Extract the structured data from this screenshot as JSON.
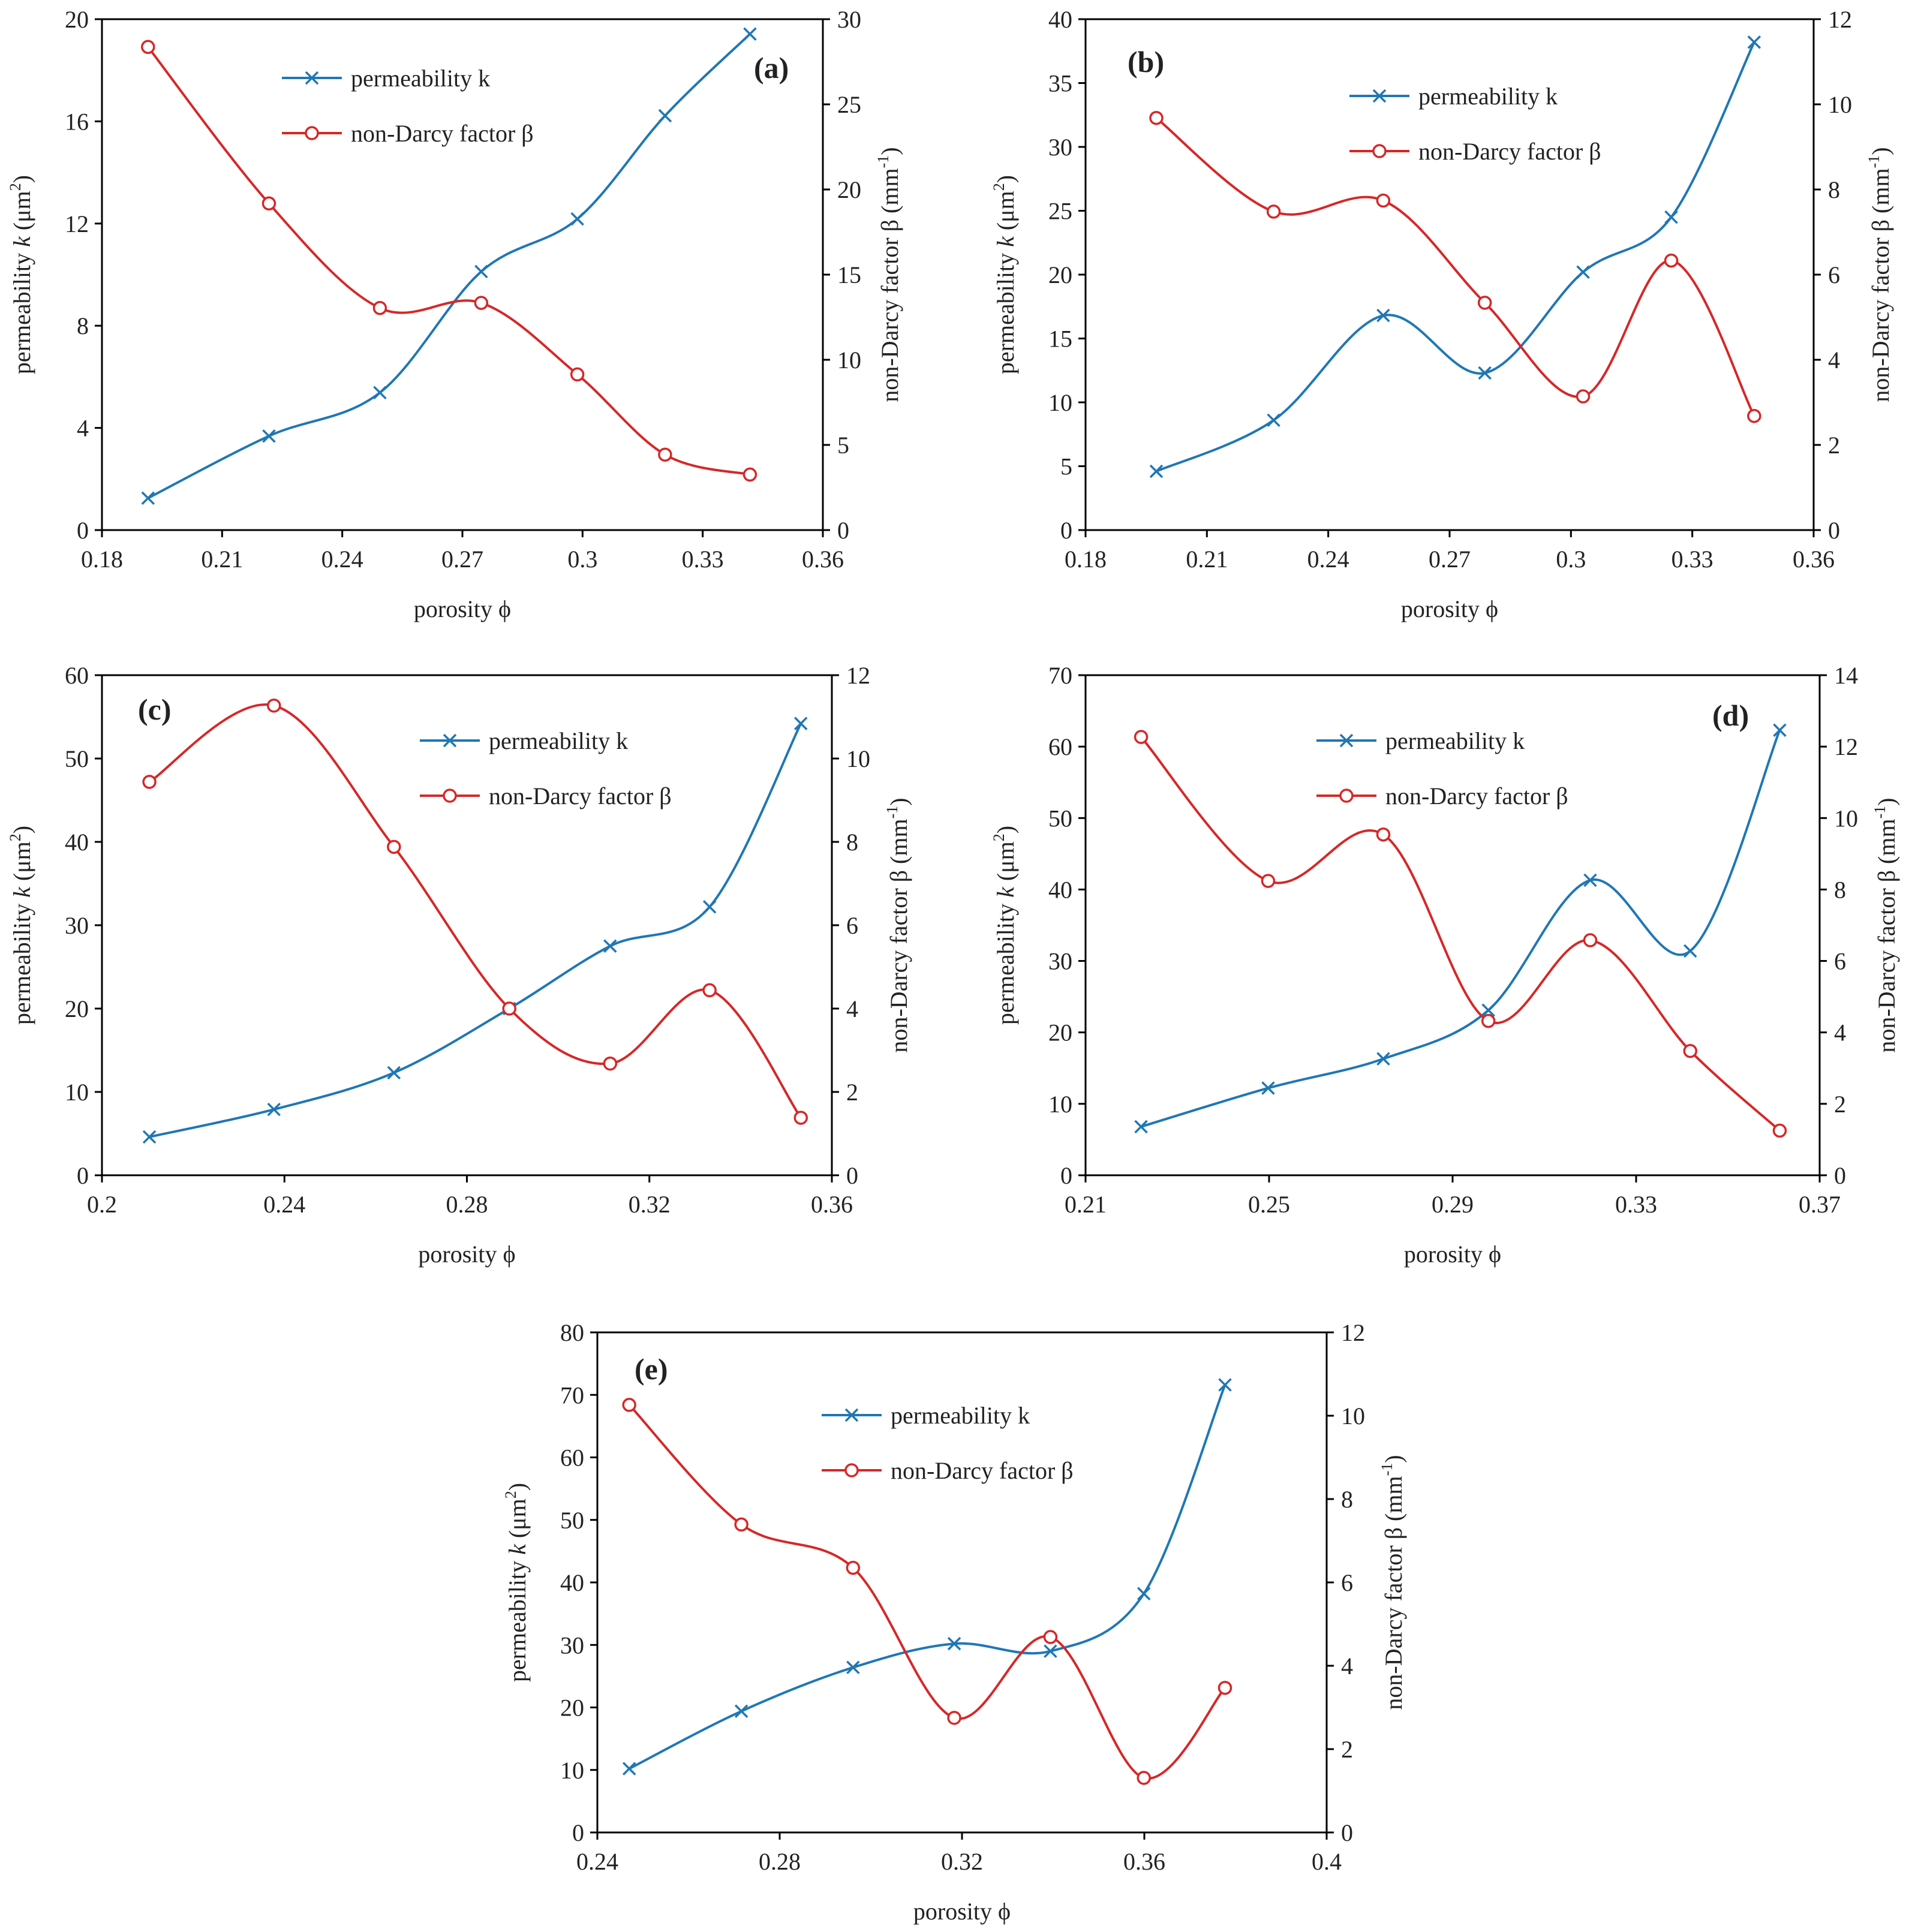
{
  "colors": {
    "permeability": "#1f77b4",
    "beta": "#d62728",
    "axis": "#000000",
    "text": "#222222"
  },
  "chart_data": [
    {
      "id": "a",
      "type": "line",
      "panel_label": "(a)",
      "xlabel": "porosity ϕ",
      "ylabel_left": {
        "pre": "permeability ",
        "k": "k",
        "mid": " (μm",
        "sup": "2",
        "post": ")"
      },
      "ylabel_right": {
        "pre": "non-Darcy factor β (mm",
        "sup": "-1",
        "post": ")"
      },
      "xlim": [
        0.18,
        0.36
      ],
      "ylim_left": [
        0,
        20
      ],
      "ylim_right": [
        0,
        30
      ],
      "x_ticks": [
        "0.18",
        "0.21",
        "0.24",
        "0.27",
        "0.3",
        "0.33",
        "0.36"
      ],
      "y_left_ticks": [
        "0",
        "4",
        "8",
        "12",
        "16",
        "20"
      ],
      "y_right_ticks": [
        "0",
        "5",
        "10",
        "15",
        "20",
        "25",
        "30"
      ],
      "legend": [
        "permeability k",
        "non-Darcy factor β"
      ],
      "series": [
        {
          "name": "permeability k",
          "axis": "left",
          "marker": "x",
          "x": [
            0.1915,
            0.2217,
            0.2494,
            0.2747,
            0.2987,
            0.3206,
            0.3418
          ],
          "y": [
            1.25,
            3.68,
            5.38,
            10.12,
            12.18,
            16.22,
            19.42
          ]
        },
        {
          "name": "non-Darcy factor β",
          "axis": "right",
          "marker": "o",
          "x": [
            0.1915,
            0.2217,
            0.2494,
            0.2747,
            0.2987,
            0.3206,
            0.3418
          ],
          "y": [
            28.37,
            19.18,
            13.04,
            13.34,
            9.14,
            4.43,
            3.26
          ]
        }
      ]
    },
    {
      "id": "b",
      "type": "line",
      "panel_label": "(b)",
      "xlabel": "porosity ϕ",
      "ylabel_left": {
        "pre": "permeability ",
        "k": "k",
        "mid": " (μm",
        "sup": "2",
        "post": ")"
      },
      "ylabel_right": {
        "pre": "non-Darcy factor β (mm",
        "sup": "-1",
        "post": ")"
      },
      "xlim": [
        0.18,
        0.36
      ],
      "ylim_left": [
        0,
        40
      ],
      "ylim_right": [
        0,
        12
      ],
      "x_ticks": [
        "0.18",
        "0.21",
        "0.24",
        "0.27",
        "0.3",
        "0.33",
        "0.36"
      ],
      "y_left_ticks": [
        "0",
        "5",
        "10",
        "15",
        "20",
        "25",
        "30",
        "35",
        "40"
      ],
      "y_right_ticks": [
        "0",
        "2",
        "4",
        "6",
        "8",
        "10",
        "12"
      ],
      "legend": [
        "permeability k",
        "non-Darcy factor β"
      ],
      "series": [
        {
          "name": "permeability k",
          "axis": "left",
          "marker": "x",
          "x": [
            0.1975,
            0.2265,
            0.2536,
            0.2787,
            0.303,
            0.3248,
            0.3453
          ],
          "y": [
            4.6,
            8.6,
            16.8,
            12.3,
            20.2,
            24.5,
            38.2
          ]
        },
        {
          "name": "non-Darcy factor β",
          "axis": "right",
          "marker": "o",
          "x": [
            0.1975,
            0.2265,
            0.2536,
            0.2787,
            0.303,
            0.3248,
            0.3453
          ],
          "y": [
            9.68,
            7.48,
            7.74,
            5.34,
            3.14,
            6.33,
            2.68
          ]
        }
      ]
    },
    {
      "id": "c",
      "type": "line",
      "panel_label": "(c)",
      "xlabel": "porosity ϕ",
      "ylabel_left": {
        "pre": "permeability ",
        "k": "k",
        "mid": " (μm",
        "sup": "2",
        "post": ")"
      },
      "ylabel_right": {
        "pre": "non-Darcy factor β (mm",
        "sup": "-1",
        "post": ")"
      },
      "xlim": [
        0.2,
        0.36
      ],
      "ylim_left": [
        0,
        60
      ],
      "ylim_right": [
        0,
        12
      ],
      "x_ticks": [
        "0.2",
        "0.24",
        "0.28",
        "0.32",
        "0.36"
      ],
      "y_left_ticks": [
        "0",
        "10",
        "20",
        "30",
        "40",
        "50",
        "60"
      ],
      "y_right_ticks": [
        "0",
        "2",
        "4",
        "6",
        "8",
        "10",
        "12"
      ],
      "legend": [
        "permeability k",
        "non-Darcy factor β"
      ],
      "series": [
        {
          "name": "permeability k",
          "axis": "left",
          "marker": "x",
          "x": [
            0.2104,
            0.2377,
            0.264,
            0.2893,
            0.3114,
            0.3332,
            0.3532
          ],
          "y": [
            4.6,
            7.9,
            12.3,
            20.0,
            27.5,
            32.2,
            54.2
          ]
        },
        {
          "name": "non-Darcy factor β",
          "axis": "right",
          "marker": "o",
          "x": [
            0.2104,
            0.2377,
            0.264,
            0.2893,
            0.3114,
            0.3332,
            0.3532
          ],
          "y": [
            9.44,
            11.27,
            7.88,
            4.0,
            2.68,
            4.44,
            1.38
          ]
        }
      ]
    },
    {
      "id": "d",
      "type": "line",
      "panel_label": "(d)",
      "xlabel": "porosity ϕ",
      "ylabel_left": {
        "pre": "permeability ",
        "k": "k",
        "mid": " (μm",
        "sup": "2",
        "post": ")"
      },
      "ylabel_right": {
        "pre": "non-Darcy factor β (mm",
        "sup": "-1",
        "post": ")"
      },
      "xlim": [
        0.21,
        0.37
      ],
      "ylim_left": [
        0,
        70
      ],
      "ylim_right": [
        0,
        14
      ],
      "x_ticks": [
        "0.21",
        "0.25",
        "0.29",
        "0.33",
        "0.37"
      ],
      "y_left_ticks": [
        "0",
        "10",
        "20",
        "30",
        "40",
        "50",
        "60",
        "70"
      ],
      "y_right_ticks": [
        "0",
        "2",
        "4",
        "6",
        "8",
        "10",
        "12",
        "14"
      ],
      "legend": [
        "permeability k",
        "non-Darcy factor β"
      ],
      "series": [
        {
          "name": "permeability k",
          "axis": "left",
          "marker": "x",
          "x": [
            0.2221,
            0.2498,
            0.2749,
            0.2978,
            0.32,
            0.3418,
            0.3613
          ],
          "y": [
            6.8,
            12.2,
            16.3,
            23.1,
            41.3,
            31.4,
            62.3
          ]
        },
        {
          "name": "non-Darcy factor β",
          "axis": "right",
          "marker": "o",
          "x": [
            0.2221,
            0.2498,
            0.2749,
            0.2978,
            0.32,
            0.3418,
            0.3613
          ],
          "y": [
            12.27,
            8.24,
            9.54,
            4.32,
            6.58,
            3.48,
            1.25
          ]
        }
      ]
    },
    {
      "id": "e",
      "type": "line",
      "panel_label": "(e)",
      "xlabel": "porosity ϕ",
      "ylabel_left": {
        "pre": "permeability ",
        "k": "k",
        "mid": " (μm",
        "sup": "2",
        "post": ")"
      },
      "ylabel_right": {
        "pre": "non-Darcy factor β (mm",
        "sup": "-1",
        "post": ")"
      },
      "xlim": [
        0.24,
        0.4
      ],
      "ylim_left": [
        0,
        80
      ],
      "ylim_right": [
        0,
        12
      ],
      "x_ticks": [
        "0.24",
        "0.28",
        "0.32",
        "0.36",
        "0.4"
      ],
      "y_left_ticks": [
        "0",
        "10",
        "20",
        "30",
        "40",
        "50",
        "60",
        "70",
        "80"
      ],
      "y_right_ticks": [
        "0",
        "2",
        "4",
        "6",
        "8",
        "10",
        "12"
      ],
      "legend": [
        "permeability k",
        "non-Darcy factor β"
      ],
      "series": [
        {
          "name": "permeability k",
          "axis": "left",
          "marker": "x",
          "x": [
            0.247,
            0.2716,
            0.2961,
            0.3183,
            0.3394,
            0.3599,
            0.3777
          ],
          "y": [
            10.2,
            19.4,
            26.4,
            30.2,
            29.0,
            38.2,
            71.6
          ]
        },
        {
          "name": "non-Darcy factor β",
          "axis": "right",
          "marker": "o",
          "x": [
            0.247,
            0.2716,
            0.2961,
            0.3183,
            0.3394,
            0.3599,
            0.3777
          ],
          "y": [
            10.26,
            7.39,
            6.35,
            2.75,
            4.69,
            1.31,
            3.47
          ]
        }
      ]
    }
  ]
}
